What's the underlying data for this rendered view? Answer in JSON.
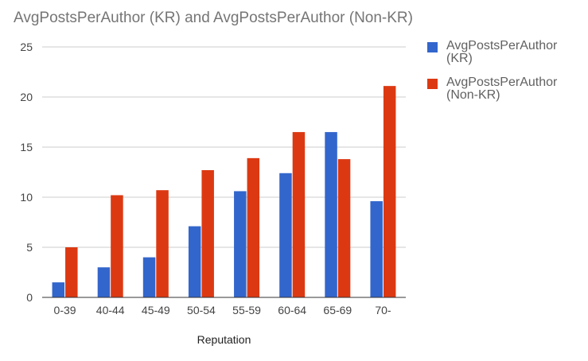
{
  "chart_data": {
    "type": "bar",
    "title": "AvgPostsPerAuthor (KR) and AvgPostsPerAuthor (Non-KR)",
    "xlabel": "Reputation",
    "ylabel": "",
    "categories": [
      "0-39",
      "40-44",
      "45-49",
      "50-54",
      "55-59",
      "60-64",
      "65-69",
      "70-"
    ],
    "series": [
      {
        "name": "AvgPostsPerAuthor (KR)",
        "color": "#3366cc",
        "values": [
          1.5,
          3.0,
          4.0,
          7.1,
          10.6,
          12.4,
          16.5,
          9.6
        ]
      },
      {
        "name": "AvgPostsPerAuthor (Non-KR)",
        "color": "#dc3912",
        "values": [
          5.0,
          10.2,
          10.7,
          12.7,
          13.9,
          16.5,
          13.8,
          21.1
        ]
      }
    ],
    "ylim": [
      0,
      25
    ],
    "yticks": [
      "0",
      "5",
      "10",
      "15",
      "20",
      "25"
    ],
    "grid": true,
    "legend_position": "right"
  }
}
